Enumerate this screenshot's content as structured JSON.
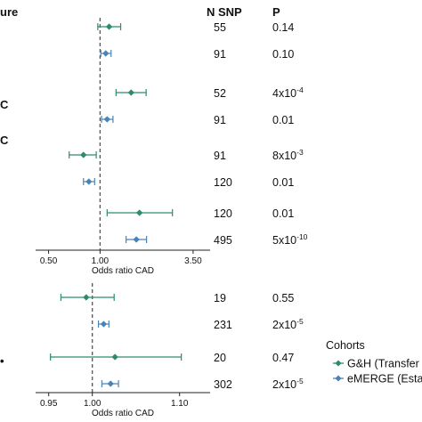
{
  "header": {
    "exposure_label_fragment": "ure",
    "nsnp_label": "N SNP",
    "p_label": "P"
  },
  "row_labels_fragments": [
    "C",
    "C",
    "",
    "",
    "",
    "•"
  ],
  "colors": {
    "gh": "#2e8b6e",
    "emerge": "#4a83b5",
    "axis": "#222222",
    "ref_line": "#555555"
  },
  "legend": {
    "title": "Cohorts",
    "items": [
      {
        "label": "G&H (Transfer",
        "color": "#2e8b6e"
      },
      {
        "label": "eMERGE (Esta",
        "color": "#4a83b5"
      }
    ]
  },
  "chart_data": [
    {
      "type": "forest",
      "xscale": "log",
      "xlabel": "Odds ratio CAD",
      "xticks": [
        0.5,
        1.0,
        3.5
      ],
      "xtick_labels": [
        "0.50",
        "1.00",
        "3.50"
      ],
      "xlim": [
        0.42,
        4.4
      ],
      "reference": 1.0,
      "rows": [
        {
          "cohort": "gh",
          "or": 1.13,
          "lo": 0.97,
          "hi": 1.32,
          "nsnp": "55",
          "p": "0.14",
          "p_sup": ""
        },
        {
          "cohort": "emerge",
          "or": 1.08,
          "lo": 1.01,
          "hi": 1.16,
          "nsnp": "91",
          "p": "0.10",
          "p_sup": ""
        },
        {
          "cohort": "gh",
          "or": 1.52,
          "lo": 1.24,
          "hi": 1.86,
          "nsnp": "52",
          "p": "4x10",
          "p_sup": "-4"
        },
        {
          "cohort": "emerge",
          "or": 1.1,
          "lo": 1.02,
          "hi": 1.19,
          "nsnp": "91",
          "p": "0.01",
          "p_sup": ""
        },
        {
          "cohort": "gh",
          "or": 0.8,
          "lo": 0.66,
          "hi": 0.95,
          "nsnp": "91",
          "p": "8x10",
          "p_sup": "-3"
        },
        {
          "cohort": "emerge",
          "or": 0.86,
          "lo": 0.8,
          "hi": 0.93,
          "nsnp": "120",
          "p": "0.01",
          "p_sup": ""
        },
        {
          "cohort": "gh",
          "or": 1.7,
          "lo": 1.1,
          "hi": 2.65,
          "nsnp": "120",
          "p": "0.01",
          "p_sup": ""
        },
        {
          "cohort": "emerge",
          "or": 1.63,
          "lo": 1.42,
          "hi": 1.87,
          "nsnp": "495",
          "p": "5x10",
          "p_sup": "-10"
        }
      ]
    },
    {
      "type": "forest",
      "xscale": "linear",
      "xlabel": "Odds ratio CAD",
      "xticks": [
        0.95,
        1.0,
        1.1
      ],
      "xtick_labels": [
        "0.95",
        "1.00",
        "1.10"
      ],
      "xlim": [
        0.935,
        1.135
      ],
      "reference": 1.0,
      "rows": [
        {
          "cohort": "gh",
          "or": 0.993,
          "lo": 0.964,
          "hi": 1.025,
          "nsnp": "19",
          "p": "0.55",
          "p_sup": ""
        },
        {
          "cohort": "emerge",
          "or": 1.013,
          "lo": 1.007,
          "hi": 1.019,
          "nsnp": "231",
          "p": "2x10",
          "p_sup": "-5"
        },
        {
          "cohort": "gh",
          "or": 1.026,
          "lo": 0.952,
          "hi": 1.102,
          "nsnp": "20",
          "p": "0.47",
          "p_sup": ""
        },
        {
          "cohort": "emerge",
          "or": 1.021,
          "lo": 1.011,
          "hi": 1.03,
          "nsnp": "302",
          "p": "2x10",
          "p_sup": "-5"
        }
      ]
    }
  ]
}
